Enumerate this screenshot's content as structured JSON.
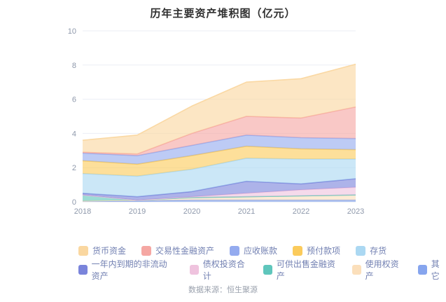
{
  "title": "历年主要资产堆积图（亿元）",
  "footer": "数据来源：恒生聚源",
  "axis": {
    "y_ticks": [
      0,
      2,
      4,
      6,
      8,
      10
    ],
    "x_labels": [
      "2018",
      "2019",
      "2020",
      "2021",
      "2022",
      "2023"
    ],
    "label_color": "#8e98ab",
    "grid_color": "#ebeef5",
    "baseline_color": "#dfe3ea"
  },
  "chart_data": {
    "type": "area",
    "stacked": true,
    "title": "历年主要资产堆积图（亿元）",
    "x": [
      "2018",
      "2019",
      "2020",
      "2021",
      "2022",
      "2023"
    ],
    "ylim": [
      0,
      10
    ],
    "grid": true,
    "legend_position": "bottom",
    "series": [
      {
        "name": "货币资金",
        "color": "#FAD7A0",
        "values": [
          0.7,
          1.1,
          1.6,
          2.0,
          2.3,
          2.5
        ]
      },
      {
        "name": "交易性金融资产",
        "color": "#F5A7A3",
        "values": [
          0.05,
          0.1,
          0.7,
          1.1,
          1.15,
          1.85
        ]
      },
      {
        "name": "应收账款",
        "color": "#94ABEF",
        "values": [
          0.45,
          0.5,
          0.6,
          0.65,
          0.65,
          0.65
        ]
      },
      {
        "name": "预付款项",
        "color": "#FBCB5C",
        "values": [
          0.75,
          0.7,
          0.8,
          0.7,
          0.6,
          0.55
        ]
      },
      {
        "name": "存货",
        "color": "#ABD8F2",
        "values": [
          1.15,
          1.2,
          1.3,
          1.35,
          1.45,
          1.15
        ]
      },
      {
        "name": "一年内到期的非流动资产",
        "color": "#7A84DB",
        "values": [
          0.1,
          0.2,
          0.3,
          0.7,
          0.35,
          0.5
        ]
      },
      {
        "name": "债权投资合计",
        "color": "#EFC3DE",
        "values": [
          0.0,
          0.0,
          0.05,
          0.2,
          0.35,
          0.45
        ]
      },
      {
        "name": "可供出售金融资产",
        "color": "#5FC6BC",
        "values": [
          0.35,
          0.0,
          0.0,
          0.0,
          0.0,
          0.0
        ]
      },
      {
        "name": "使用权资产",
        "color": "#FBDFBB",
        "values": [
          0.0,
          0.05,
          0.15,
          0.2,
          0.25,
          0.3
        ]
      },
      {
        "name": "其它",
        "color": "#86A5EE",
        "values": [
          0.05,
          0.05,
          0.1,
          0.1,
          0.1,
          0.1
        ]
      }
    ],
    "stack_order_bottom_to_top": [
      "其它",
      "使用权资产",
      "可供出售金融资产",
      "债权投资合计",
      "一年内到期的非流动资产",
      "存货",
      "预付款项",
      "应收账款",
      "交易性金融资产",
      "货币资金"
    ],
    "totals_by_year": [
      3.6,
      3.9,
      5.6,
      7.0,
      7.2,
      8.05
    ]
  },
  "legend_rows": [
    [
      "货币资金",
      "交易性金融资产",
      "应收账款",
      "预付款项",
      "存货"
    ],
    [
      "一年内到期的非流动资产",
      "债权投资合计",
      "可供出售金融资产",
      "使用权资产",
      "其它"
    ]
  ]
}
